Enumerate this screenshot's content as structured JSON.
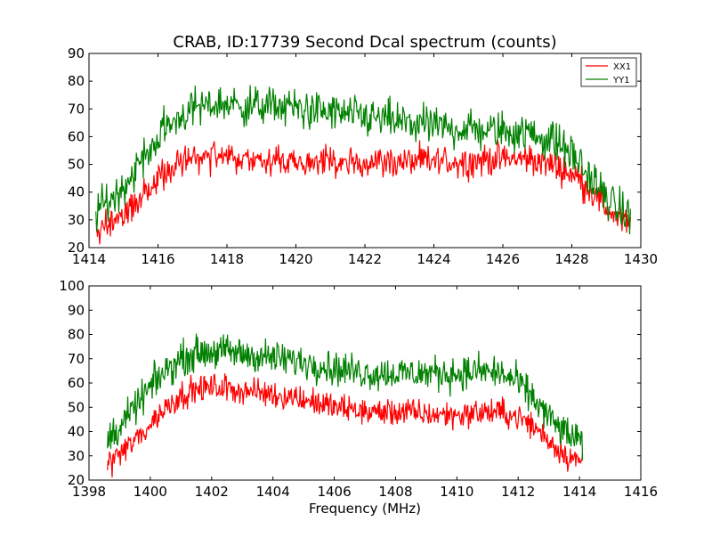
{
  "figure": {
    "title": "CRAB, ID:17739 Second Dcal spectrum (counts)"
  },
  "colors": {
    "XX1": "#ff0000",
    "YY1": "#008000"
  },
  "chart_data": [
    {
      "type": "line",
      "title": "CRAB, ID:17739 Second Dcal spectrum (counts)",
      "xlabel": "",
      "ylabel": "",
      "xlim": [
        1414,
        1430
      ],
      "ylim": [
        20,
        90
      ],
      "xticks": [
        1414,
        1416,
        1418,
        1420,
        1422,
        1424,
        1426,
        1428,
        1430
      ],
      "yticks": [
        20,
        30,
        40,
        50,
        60,
        70,
        80,
        90
      ],
      "grid": false,
      "legend": {
        "position": "top-right",
        "entries": [
          "XX1",
          "YY1"
        ]
      },
      "series": [
        {
          "name": "XX1",
          "color": "#ff0000",
          "x": [
            1414.2,
            1414.6,
            1415.0,
            1415.4,
            1415.8,
            1416.2,
            1416.6,
            1417.0,
            1417.4,
            1417.8,
            1418.4,
            1419.0,
            1419.6,
            1420.2,
            1420.8,
            1421.4,
            1422.0,
            1422.6,
            1423.2,
            1423.8,
            1424.4,
            1425.0,
            1425.6,
            1426.2,
            1426.8,
            1427.4,
            1427.8,
            1428.2,
            1428.6,
            1429.0,
            1429.4,
            1429.7
          ],
          "values": [
            27,
            29,
            32,
            37,
            42,
            47,
            50,
            52,
            53,
            53,
            52,
            51,
            51,
            51,
            51,
            50,
            51,
            51,
            51,
            51,
            51,
            51,
            52,
            52,
            52,
            50,
            48,
            45,
            40,
            34,
            30,
            28
          ],
          "noise": 4
        },
        {
          "name": "YY1",
          "color": "#008000",
          "x": [
            1414.2,
            1414.6,
            1415.0,
            1415.4,
            1415.8,
            1416.2,
            1416.6,
            1417.0,
            1417.4,
            1417.8,
            1418.4,
            1419.0,
            1419.6,
            1420.2,
            1420.8,
            1421.4,
            1422.0,
            1422.6,
            1423.2,
            1423.8,
            1424.4,
            1425.0,
            1425.6,
            1426.2,
            1426.8,
            1427.4,
            1427.8,
            1428.2,
            1428.6,
            1429.0,
            1429.4,
            1429.7
          ],
          "values": [
            33,
            37,
            42,
            49,
            56,
            63,
            67,
            70,
            71,
            72,
            71,
            71,
            71,
            70,
            69,
            68,
            67,
            66,
            65,
            64,
            63,
            63,
            62,
            62,
            61,
            59,
            56,
            51,
            44,
            38,
            33,
            31
          ],
          "noise": 5
        }
      ]
    },
    {
      "type": "line",
      "title": "",
      "xlabel": "Frequency (MHz)",
      "ylabel": "",
      "xlim": [
        1398,
        1416
      ],
      "ylim": [
        20,
        100
      ],
      "xticks": [
        1398,
        1400,
        1402,
        1404,
        1406,
        1408,
        1410,
        1412,
        1414,
        1416
      ],
      "yticks": [
        20,
        30,
        40,
        50,
        60,
        70,
        80,
        90,
        100
      ],
      "grid": false,
      "series": [
        {
          "name": "XX1",
          "color": "#ff0000",
          "x": [
            1398.6,
            1399.0,
            1399.4,
            1399.8,
            1400.2,
            1400.6,
            1401.0,
            1401.4,
            1401.8,
            1402.4,
            1403.0,
            1403.6,
            1404.2,
            1404.8,
            1405.4,
            1406.0,
            1406.6,
            1407.2,
            1407.8,
            1408.4,
            1409.0,
            1409.6,
            1410.2,
            1410.8,
            1411.4,
            1412.0,
            1412.4,
            1412.8,
            1413.2,
            1413.6,
            1414.1
          ],
          "values": [
            27,
            31,
            35,
            40,
            46,
            51,
            55,
            57,
            58,
            58,
            57,
            56,
            55,
            54,
            52,
            50,
            49,
            48,
            48,
            48,
            47,
            47,
            47,
            48,
            48,
            46,
            43,
            39,
            34,
            30,
            27
          ],
          "noise": 4
        },
        {
          "name": "YY1",
          "color": "#008000",
          "x": [
            1398.6,
            1399.0,
            1399.4,
            1399.8,
            1400.2,
            1400.6,
            1401.0,
            1401.4,
            1401.8,
            1402.4,
            1403.0,
            1403.6,
            1404.2,
            1404.8,
            1405.4,
            1406.0,
            1406.6,
            1407.2,
            1407.8,
            1408.4,
            1409.0,
            1409.6,
            1410.2,
            1410.8,
            1411.4,
            1412.0,
            1412.4,
            1412.8,
            1413.2,
            1413.6,
            1414.1
          ],
          "values": [
            37,
            42,
            48,
            55,
            61,
            66,
            70,
            72,
            73,
            73,
            72,
            71,
            70,
            69,
            68,
            66,
            65,
            64,
            64,
            64,
            64,
            64,
            64,
            65,
            64,
            60,
            55,
            49,
            43,
            39,
            35
          ],
          "noise": 5
        }
      ]
    }
  ]
}
